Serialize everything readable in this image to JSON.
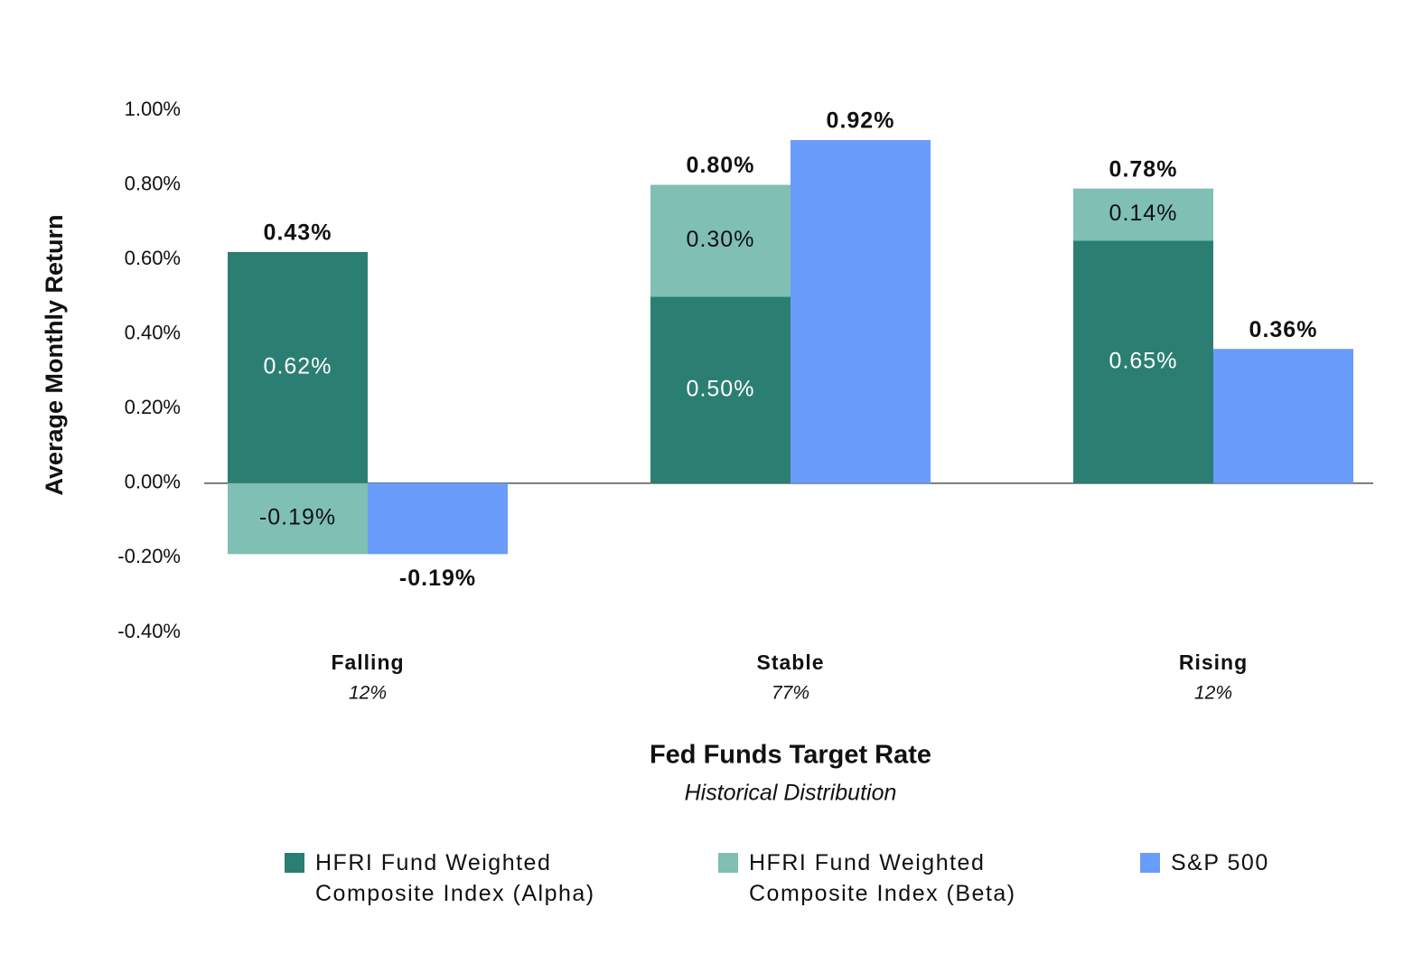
{
  "chart_data": {
    "type": "grouped_stacked_bar",
    "y_label": "Average Monthly Return",
    "x_label": "Fed Funds Target Rate",
    "x_sublabel": "Historical Distribution",
    "categories": [
      "Falling",
      "Stable",
      "Rising"
    ],
    "distribution": {
      "values": [
        12,
        77,
        12
      ],
      "value_labels": [
        "12%",
        "77%",
        "12%"
      ]
    },
    "ylim": [
      -0.4,
      1.0
    ],
    "yticks": [
      {
        "value": -0.4,
        "label": "-0.40%"
      },
      {
        "value": -0.2,
        "label": "-0.20%"
      },
      {
        "value": 0,
        "label": "0.00%"
      },
      {
        "value": 0.2,
        "label": "0.20%"
      },
      {
        "value": 0.4,
        "label": "0.40%"
      },
      {
        "value": 0.6,
        "label": "0.60%"
      },
      {
        "value": 0.8,
        "label": "0.80%"
      },
      {
        "value": 1.0,
        "label": "1.00%"
      }
    ],
    "series": [
      {
        "name": "HFRI Fund Weighted Composite Index (Alpha)",
        "color": "#2b7f72",
        "stack": "hfri",
        "values": [
          0.62,
          0.5,
          0.65
        ],
        "value_labels": [
          "0.62%",
          "0.50%",
          "0.65%"
        ]
      },
      {
        "name": "HFRI Fund Weighted Composite Index (Beta)",
        "color": "#7fbfb4",
        "stack": "hfri",
        "values": [
          -0.19,
          0.3,
          0.14
        ],
        "value_labels": [
          "-0.19%",
          "0.30%",
          "0.14%"
        ]
      },
      {
        "name": "S&P 500",
        "color": "#699cfb",
        "stack": "sp",
        "values": [
          -0.19,
          0.92,
          0.36
        ],
        "value_labels": [
          "-0.19%",
          "0.92%",
          "0.36%"
        ]
      }
    ],
    "totals": {
      "values": [
        0.43,
        0.8,
        0.78
      ],
      "value_labels": [
        "0.43%",
        "0.80%",
        "0.78%"
      ]
    }
  }
}
